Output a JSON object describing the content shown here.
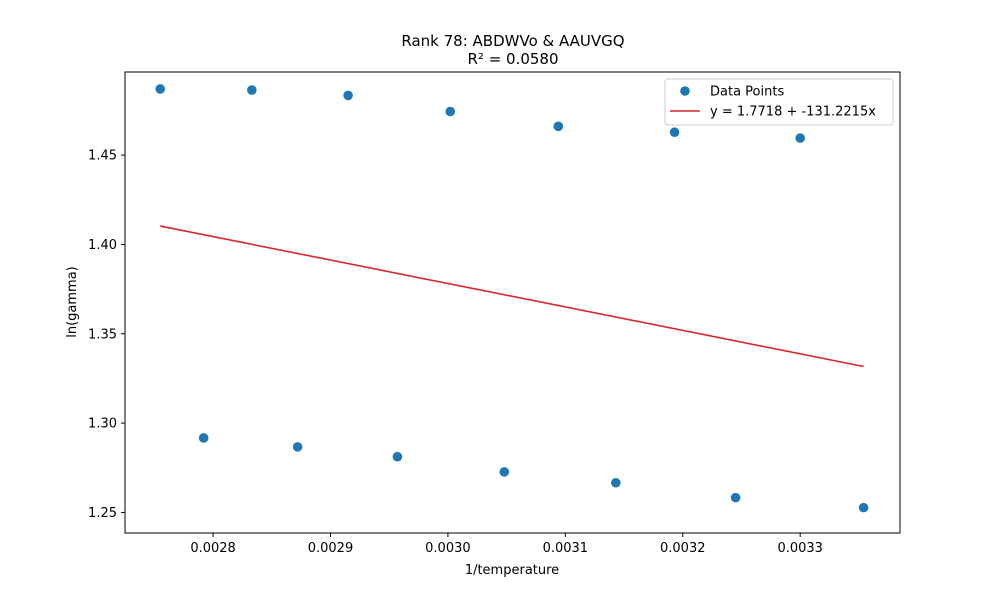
{
  "chart_data": {
    "type": "scatter",
    "title": "Rank 78: ABDWVo & AAUVGQ",
    "subtitle": "R² = 0.0580",
    "xlabel": "1/temperature",
    "ylabel": "ln(gamma)",
    "xlim": [
      0.002725,
      0.003385
    ],
    "ylim": [
      1.2385,
      1.4965
    ],
    "xticks": [
      0.0028,
      0.0029,
      0.003,
      0.0031,
      0.0032,
      0.0033
    ],
    "xtick_labels": [
      "0.0028",
      "0.0029",
      "0.0030",
      "0.0031",
      "0.0032",
      "0.0033"
    ],
    "yticks": [
      1.25,
      1.3,
      1.35,
      1.4,
      1.45
    ],
    "ytick_labels": [
      "1.25",
      "1.30",
      "1.35",
      "1.40",
      "1.45"
    ],
    "grid": false,
    "legend": "top-right",
    "series": [
      {
        "name": "Data Points",
        "kind": "scatter",
        "color": "#1f77b4",
        "points": [
          {
            "x": 0.002755,
            "y": 1.487
          },
          {
            "x": 0.002833,
            "y": 1.4864
          },
          {
            "x": 0.002915,
            "y": 1.4834
          },
          {
            "x": 0.003002,
            "y": 1.4744
          },
          {
            "x": 0.003094,
            "y": 1.4661
          },
          {
            "x": 0.003193,
            "y": 1.4628
          },
          {
            "x": 0.0033,
            "y": 1.4595
          },
          {
            "x": 0.002792,
            "y": 1.2917
          },
          {
            "x": 0.002872,
            "y": 1.2867
          },
          {
            "x": 0.002957,
            "y": 1.2812
          },
          {
            "x": 0.003048,
            "y": 1.2727
          },
          {
            "x": 0.003143,
            "y": 1.2666
          },
          {
            "x": 0.003245,
            "y": 1.2583
          },
          {
            "x": 0.003354,
            "y": 1.2527
          }
        ]
      },
      {
        "name": "y = 1.7718 + -131.2215x",
        "kind": "line",
        "color": "#d62728",
        "intercept": 1.7718,
        "slope": -131.2215,
        "x_range": [
          0.002755,
          0.003354
        ]
      }
    ]
  }
}
